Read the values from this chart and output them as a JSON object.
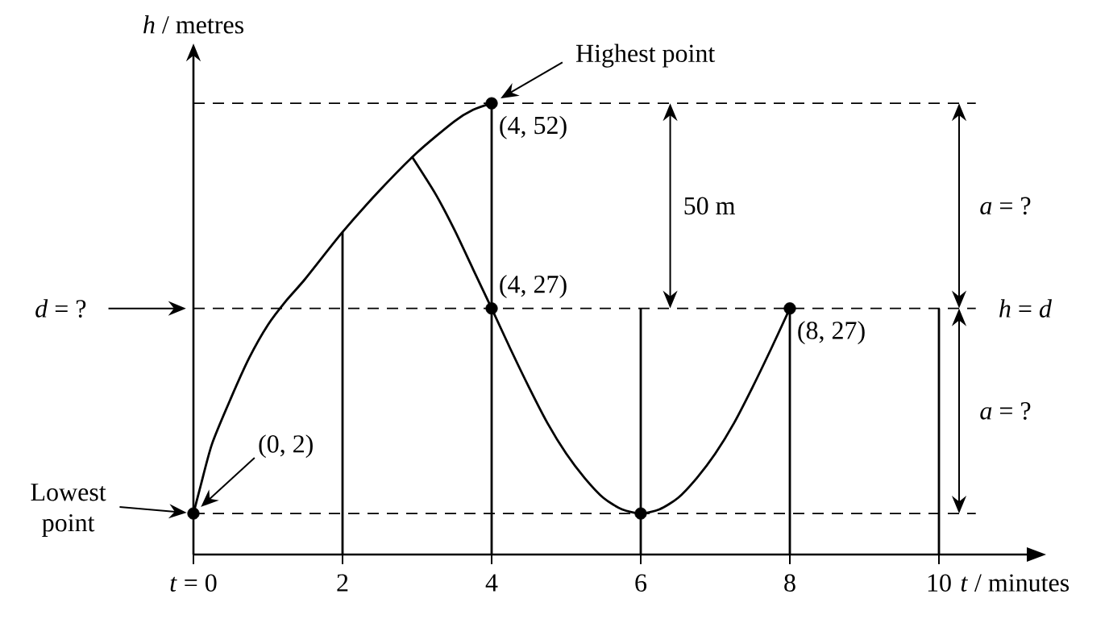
{
  "chart_data": {
    "type": "line",
    "xlabel": "*t* / minutes",
    "ylabel": "*h* / metres",
    "xlim": [
      0,
      11.2
    ],
    "ylim": [
      -3,
      58.5
    ],
    "xticks": [
      {
        "value": 0,
        "label": "*t* = 0"
      },
      2,
      4,
      6,
      8,
      10
    ],
    "tick_labels": "x",
    "series": [
      {
        "color": "#000000",
        "x": [
          0,
          0.1,
          0.25,
          0.5,
          0.75,
          1,
          1.25,
          1.5,
          2,
          2.5,
          3,
          3.5,
          3.75,
          4
        ],
        "values": [
          2,
          5.5,
          10.5,
          16,
          21,
          25,
          28,
          30.6,
          36.3,
          41.4,
          46,
          49.8,
          51.2,
          52
        ]
      },
      {
        "color": "#000000",
        "x": [
          2.93,
          3.25,
          3.5,
          3.75,
          4,
          4.25,
          4.5,
          4.75,
          5,
          5.25,
          5.5,
          5.75,
          6,
          6.25,
          6.5,
          6.75,
          7,
          7.25,
          7.5,
          7.75,
          8
        ],
        "values": [
          45.5,
          40.9,
          36.6,
          31.8,
          27,
          22.1,
          17.4,
          13,
          9.3,
          6.3,
          3.9,
          2.5,
          2,
          2.5,
          3.9,
          6.3,
          9.3,
          13,
          17.4,
          22.1,
          27
        ]
      },
      {
        "color": "#000000",
        "x": [
          2,
          2
        ],
        "values": [
          -3,
          36.3
        ]
      },
      {
        "color": "#000000",
        "x": [
          4,
          4
        ],
        "values": [
          -3,
          52
        ]
      },
      {
        "color": "#000000",
        "x": [
          6,
          6
        ],
        "values": [
          -3,
          27
        ]
      },
      {
        "color": "#000000",
        "x": [
          8,
          8
        ],
        "values": [
          -3,
          27
        ]
      },
      {
        "color": "#000000",
        "x": [
          10,
          10
        ],
        "values": [
          -3,
          27
        ]
      },
      {
        "type": "scatter",
        "marker": "circle",
        "color": "#000000",
        "x": [
          0,
          4,
          4,
          6,
          8
        ],
        "values": [
          2,
          52,
          27,
          2,
          27
        ],
        "value_labels": [
          null,
          "(4, 52)",
          "(4, 27)",
          null,
          "(8, 27)"
        ]
      }
    ],
    "ref_lines": [
      {
        "axis": "y",
        "value": 52,
        "line_style": "dashed"
      },
      {
        "axis": "y",
        "value": 27,
        "label": "*h* = *d*",
        "line_style": "dashed"
      },
      {
        "axis": "y",
        "value": 2,
        "line_style": "dashed"
      }
    ],
    "annotations": [
      "Highest point",
      "Lowest point",
      "(0, 2)",
      "*d* = ?",
      "50 m",
      "*a* = ?",
      "*a* = ?"
    ]
  }
}
